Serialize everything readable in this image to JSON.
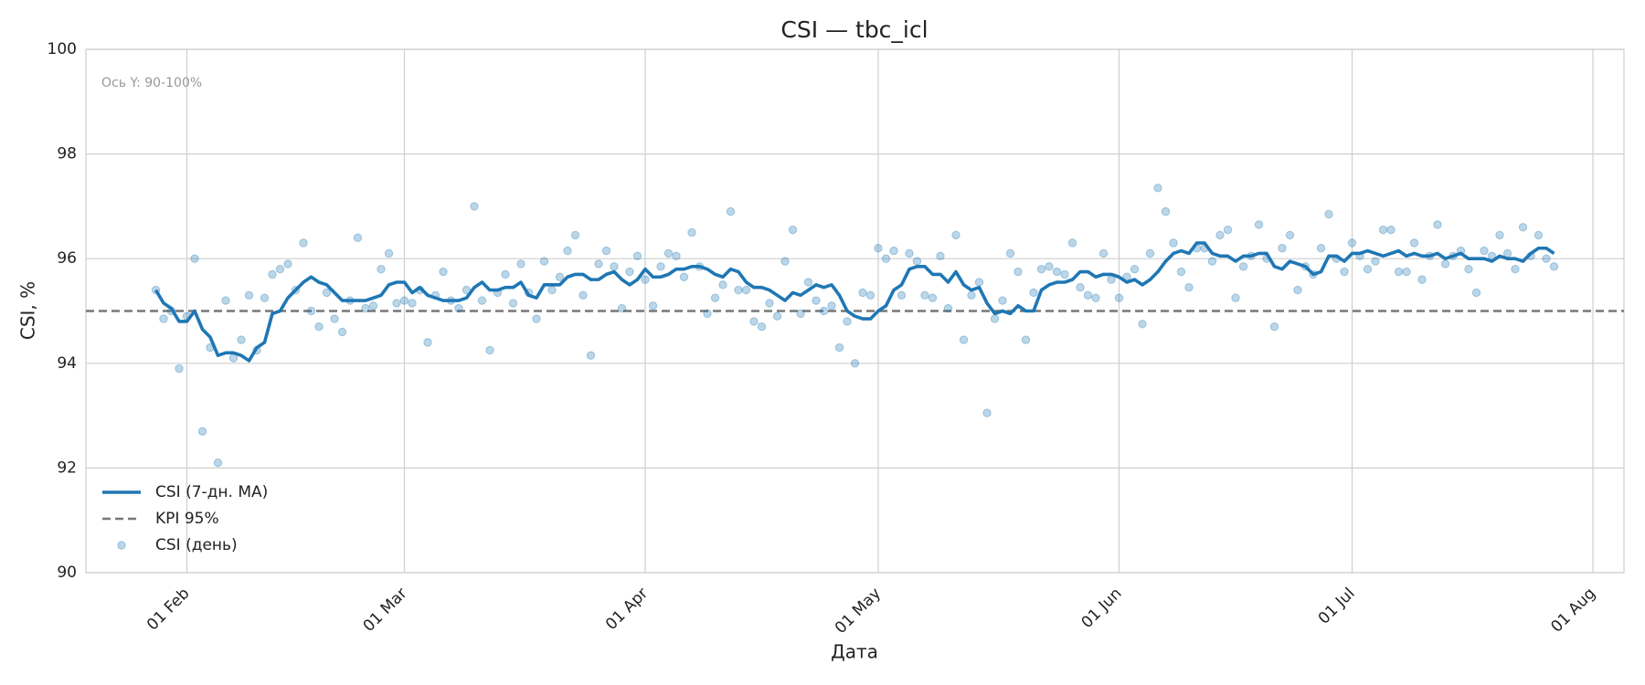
{
  "chart_data": {
    "type": "line",
    "title": "CSI — tbc_icl",
    "x_label": "Дата",
    "y_label": "CSI, %",
    "annotation": "Ось Y: 90-100%",
    "ylim": [
      90,
      100
    ],
    "yticks": [
      90,
      92,
      94,
      96,
      98,
      100
    ],
    "xlim": [
      "19 Jan",
      "05 Aug"
    ],
    "xticks": [
      "01 Feb",
      "01 Mar",
      "01 Apr",
      "01 May",
      "01 Jun",
      "01 Jul",
      "01 Aug"
    ],
    "grid": true,
    "legend": "lower left",
    "x": [
      "28 Jan",
      "29 Jan",
      "30 Jan",
      "31 Jan",
      "01 Feb",
      "02 Feb",
      "03 Feb",
      "04 Feb",
      "05 Feb",
      "06 Feb",
      "07 Feb",
      "08 Feb",
      "09 Feb",
      "10 Feb",
      "11 Feb",
      "12 Feb",
      "13 Feb",
      "14 Feb",
      "15 Feb",
      "16 Feb",
      "17 Feb",
      "18 Feb",
      "19 Feb",
      "20 Feb",
      "21 Feb",
      "22 Feb",
      "23 Feb",
      "24 Feb",
      "25 Feb",
      "26 Feb",
      "27 Feb",
      "28 Feb",
      "01 Mar",
      "02 Mar",
      "03 Mar",
      "04 Mar",
      "05 Mar",
      "06 Mar",
      "07 Mar",
      "08 Mar",
      "09 Mar",
      "10 Mar",
      "11 Mar",
      "12 Mar",
      "13 Mar",
      "14 Mar",
      "15 Mar",
      "16 Mar",
      "17 Mar",
      "18 Mar",
      "19 Mar",
      "20 Mar",
      "21 Mar",
      "22 Mar",
      "23 Mar",
      "24 Mar",
      "25 Mar",
      "26 Mar",
      "27 Mar",
      "28 Mar",
      "29 Mar",
      "30 Mar",
      "31 Mar",
      "01 Apr",
      "02 Apr",
      "03 Apr",
      "04 Apr",
      "05 Apr",
      "06 Apr",
      "07 Apr",
      "08 Apr",
      "09 Apr",
      "10 Apr",
      "11 Apr",
      "12 Apr",
      "13 Apr",
      "14 Apr",
      "15 Apr",
      "16 Apr",
      "17 Apr",
      "18 Apr",
      "19 Apr",
      "20 Apr",
      "21 Apr",
      "22 Apr",
      "23 Apr",
      "24 Apr",
      "25 Apr",
      "26 Apr",
      "27 Apr",
      "28 Apr",
      "29 Apr",
      "30 Apr",
      "01 May",
      "02 May",
      "03 May",
      "04 May",
      "05 May",
      "06 May",
      "07 May",
      "08 May",
      "09 May",
      "10 May",
      "11 May",
      "12 May",
      "13 May",
      "14 May",
      "15 May",
      "16 May",
      "17 May",
      "18 May",
      "19 May",
      "20 May",
      "21 May",
      "22 May",
      "23 May",
      "24 May",
      "25 May",
      "26 May",
      "27 May",
      "28 May",
      "29 May",
      "30 May",
      "31 May",
      "01 Jun",
      "02 Jun",
      "03 Jun",
      "04 Jun",
      "05 Jun",
      "06 Jun",
      "07 Jun",
      "08 Jun",
      "09 Jun",
      "10 Jun",
      "11 Jun",
      "12 Jun",
      "13 Jun",
      "14 Jun",
      "15 Jun",
      "16 Jun",
      "17 Jun",
      "18 Jun",
      "19 Jun",
      "20 Jun",
      "21 Jun",
      "22 Jun",
      "23 Jun",
      "24 Jun",
      "25 Jun",
      "26 Jun",
      "27 Jun",
      "28 Jun",
      "29 Jun",
      "30 Jun",
      "01 Jul",
      "02 Jul",
      "03 Jul",
      "04 Jul",
      "05 Jul",
      "06 Jul",
      "07 Jul",
      "08 Jul",
      "09 Jul",
      "10 Jul",
      "11 Jul",
      "12 Jul",
      "13 Jul",
      "14 Jul",
      "15 Jul",
      "16 Jul",
      "17 Jul",
      "18 Jul",
      "19 Jul",
      "20 Jul",
      "21 Jul",
      "22 Jul",
      "23 Jul",
      "24 Jul",
      "25 Jul",
      "26 Jul",
      "27 Jul"
    ],
    "series": [
      {
        "name": "CSI (7-дн. MA)",
        "type": "line",
        "color": "#1f77b4",
        "values": [
          95.4,
          95.15,
          95.05,
          94.8,
          94.8,
          95.0,
          94.65,
          94.5,
          94.15,
          94.2,
          94.2,
          94.15,
          94.05,
          94.3,
          94.4,
          94.95,
          95.0,
          95.25,
          95.4,
          95.55,
          95.65,
          95.55,
          95.5,
          95.35,
          95.2,
          95.2,
          95.2,
          95.2,
          95.25,
          95.3,
          95.5,
          95.55,
          95.55,
          95.35,
          95.45,
          95.3,
          95.25,
          95.2,
          95.2,
          95.2,
          95.25,
          95.45,
          95.55,
          95.4,
          95.4,
          95.45,
          95.45,
          95.55,
          95.3,
          95.25,
          95.5,
          95.5,
          95.5,
          95.65,
          95.7,
          95.7,
          95.6,
          95.6,
          95.7,
          95.75,
          95.6,
          95.5,
          95.6,
          95.8,
          95.65,
          95.65,
          95.7,
          95.8,
          95.8,
          95.85,
          95.85,
          95.8,
          95.7,
          95.65,
          95.8,
          95.75,
          95.55,
          95.45,
          95.45,
          95.4,
          95.3,
          95.2,
          95.35,
          95.3,
          95.4,
          95.5,
          95.45,
          95.5,
          95.3,
          95.0,
          94.9,
          94.85,
          94.85,
          95.0,
          95.1,
          95.4,
          95.5,
          95.8,
          95.85,
          95.85,
          95.7,
          95.7,
          95.55,
          95.75,
          95.5,
          95.4,
          95.45,
          95.15,
          94.95,
          95.0,
          94.95,
          95.1,
          95.0,
          95.0,
          95.4,
          95.5,
          95.55,
          95.55,
          95.6,
          95.75,
          95.75,
          95.65,
          95.7,
          95.7,
          95.65,
          95.55,
          95.6,
          95.5,
          95.6,
          95.75,
          95.95,
          96.1,
          96.15,
          96.1,
          96.3,
          96.3,
          96.1,
          96.05,
          96.05,
          95.95,
          96.05,
          96.05,
          96.1,
          96.1,
          95.85,
          95.8,
          95.95,
          95.9,
          95.85,
          95.7,
          95.75,
          96.05,
          96.05,
          95.95,
          96.1,
          96.1,
          96.15,
          96.1,
          96.05,
          96.1,
          96.15,
          96.05,
          96.1,
          96.05,
          96.05,
          96.1,
          96.0,
          96.05,
          96.1,
          96.0,
          96.0,
          96.0,
          95.95,
          96.05,
          96.0,
          96.0,
          95.95,
          96.1,
          96.2,
          96.2,
          96.1
        ]
      },
      {
        "name": "CSI (день)",
        "type": "scatter",
        "color": "#1f77b4",
        "values": [
          95.4,
          94.85,
          95.0,
          93.9,
          94.9,
          96.0,
          92.7,
          94.3,
          92.1,
          95.2,
          94.1,
          94.45,
          95.3,
          94.25,
          95.25,
          95.7,
          95.8,
          95.9,
          95.4,
          96.3,
          95.0,
          94.7,
          95.35,
          94.85,
          94.6,
          95.2,
          96.4,
          95.05,
          95.1,
          95.8,
          96.1,
          95.15,
          95.2,
          95.15,
          95.4,
          94.4,
          95.3,
          95.75,
          95.2,
          95.05,
          95.4,
          97.0,
          95.2,
          94.25,
          95.35,
          95.7,
          95.15,
          95.9,
          95.35,
          94.85,
          95.95,
          95.4,
          95.65,
          96.15,
          96.45,
          95.3,
          94.15,
          95.9,
          96.15,
          95.85,
          95.05,
          95.75,
          96.05,
          95.6,
          95.1,
          95.85,
          96.1,
          96.05,
          95.65,
          96.5,
          95.85,
          94.95,
          95.25,
          95.5,
          96.9,
          95.4,
          95.4,
          94.8,
          94.7,
          95.15,
          94.9,
          95.95,
          96.55,
          94.95,
          95.55,
          95.2,
          95.0,
          95.1,
          94.3,
          94.8,
          94.0,
          95.35,
          95.3,
          96.2,
          96.0,
          96.15,
          95.3,
          96.1,
          95.95,
          95.3,
          95.25,
          96.05,
          95.05,
          96.45,
          94.45,
          95.3,
          95.55,
          93.05,
          94.85,
          95.2,
          96.1,
          95.75,
          94.45,
          95.35,
          95.8,
          95.85,
          95.75,
          95.7,
          96.3,
          95.45,
          95.3,
          95.25,
          96.1,
          95.6,
          95.25,
          95.65,
          95.8,
          94.75,
          96.1,
          97.35,
          96.9,
          96.3,
          95.75,
          95.45,
          96.2,
          96.2,
          95.95,
          96.45,
          96.55,
          95.25,
          95.85,
          96.05,
          96.65,
          96.0,
          94.7,
          96.2,
          96.45,
          95.4,
          95.85,
          95.7,
          96.2,
          96.85,
          96.0,
          95.75,
          96.3,
          96.05,
          95.8,
          95.95,
          96.55,
          96.55,
          95.75,
          95.75,
          96.3,
          95.6,
          96.05,
          96.65,
          95.9,
          96.05,
          96.15,
          95.8,
          95.35,
          96.15,
          96.05,
          96.45,
          96.1,
          95.8,
          96.6,
          96.05,
          96.45,
          96.0,
          95.85
        ]
      }
    ],
    "kpi": {
      "name": "KPI 95%",
      "value": 95,
      "color": "#777777"
    }
  }
}
